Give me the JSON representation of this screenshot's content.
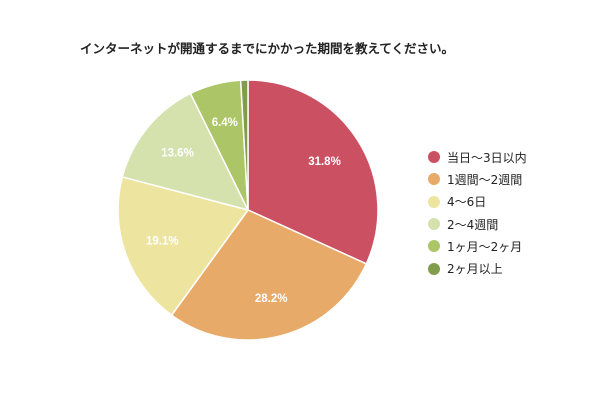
{
  "chart_data": {
    "type": "pie",
    "title": "インターネットが開通するまでにかかった期間を教えてください。",
    "categories": [
      "当日〜3日以内",
      "1週間〜2週間",
      "4〜6日",
      "2〜4週間",
      "1ヶ月〜2ヶ月",
      "2ヶ月以上"
    ],
    "values": [
      31.8,
      28.2,
      19.1,
      13.6,
      6.4,
      0.9
    ],
    "data_labels": [
      "31.8%",
      "28.2%",
      "19.1%",
      "13.6%",
      "6.4%",
      ""
    ],
    "colors": [
      "#cb5061",
      "#e8aa68",
      "#ede59f",
      "#d5e2ad",
      "#acc566",
      "#7f9d4b"
    ],
    "legend_position": "right"
  }
}
